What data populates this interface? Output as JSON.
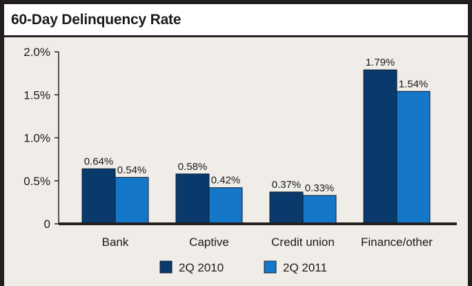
{
  "chart_data": {
    "type": "bar",
    "title": "60-Day Delinquency Rate",
    "categories": [
      "Bank",
      "Captive",
      "Credit union",
      "Finance/other"
    ],
    "series": [
      {
        "name": "2Q 2010",
        "values": [
          0.64,
          0.58,
          0.37,
          1.79
        ],
        "labels": [
          "0.64%",
          "0.58%",
          "0.37%",
          "1.79%"
        ],
        "color": "#0a3a6b"
      },
      {
        "name": "2Q 2011",
        "values": [
          0.54,
          0.42,
          0.33,
          1.54
        ],
        "labels": [
          "0.54%",
          "0.42%",
          "0.33%",
          "1.54%"
        ],
        "color": "#1477c7"
      }
    ],
    "yticks": [
      0,
      0.5,
      1.0,
      1.5,
      2.0
    ],
    "ytick_labels": [
      "0",
      "0.5%",
      "1.0%",
      "1.5%",
      "2.0%"
    ],
    "ylim": [
      0,
      2.0
    ],
    "xlabel": "",
    "ylabel": "",
    "legend_position": "bottom-center",
    "grid": false
  }
}
